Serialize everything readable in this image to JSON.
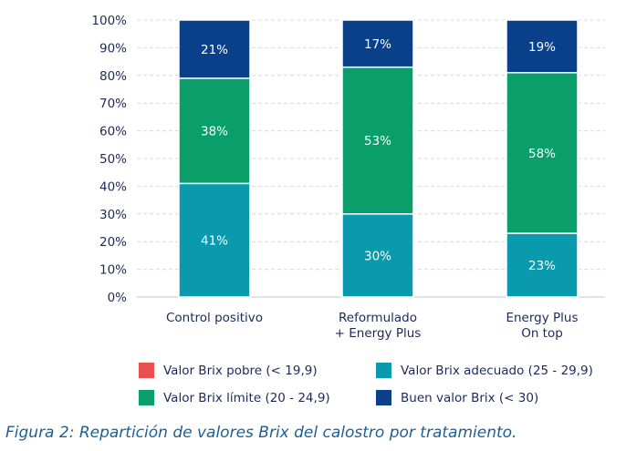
{
  "chart_data": {
    "type": "bar",
    "stacked": true,
    "categories": [
      [
        "Control positivo"
      ],
      [
        "Reformulado",
        "+ Energy Plus"
      ],
      [
        "Energy Plus",
        "On top"
      ]
    ],
    "series": [
      {
        "name": "Valor Brix pobre (< 19,9)",
        "color": "#ea5050",
        "values": [
          0,
          0,
          0
        ],
        "labels": [
          "",
          "",
          ""
        ]
      },
      {
        "name": "Valor Brix adecuado (25 - 29,9)",
        "color": "#0a9aad",
        "values": [
          41,
          30,
          23
        ],
        "labels": [
          "41%",
          "30%",
          "23%"
        ]
      },
      {
        "name": "Valor Brix límite (20 - 24,9)",
        "color": "#0a9e6b",
        "values": [
          38,
          53,
          58
        ],
        "labels": [
          "38%",
          "53%",
          "58%"
        ]
      },
      {
        "name": "Buen valor Brix (< 30)",
        "color": "#0a3f8a",
        "values": [
          21,
          17,
          19
        ],
        "labels": [
          "21%",
          "17%",
          "19%"
        ]
      }
    ],
    "yticks": [
      "0%",
      "10%",
      "20%",
      "30%",
      "40%",
      "50%",
      "60%",
      "70%",
      "80%",
      "90%",
      "100%"
    ],
    "ylim": [
      0,
      100
    ],
    "grid": true,
    "legend_position": "bottom"
  },
  "legend": {
    "items": [
      {
        "label": "Valor Brix pobre (< 19,9)",
        "color": "#ea5050"
      },
      {
        "label": "Valor Brix adecuado (25 - 29,9)",
        "color": "#0a9aad"
      },
      {
        "label": "Valor Brix límite (20 - 24,9)",
        "color": "#0a9e6b"
      },
      {
        "label": "Buen valor Brix (< 30)",
        "color": "#0a3f8a"
      }
    ]
  },
  "caption": "Figura 2: Repartición de valores Brix del calostro por tratamiento."
}
